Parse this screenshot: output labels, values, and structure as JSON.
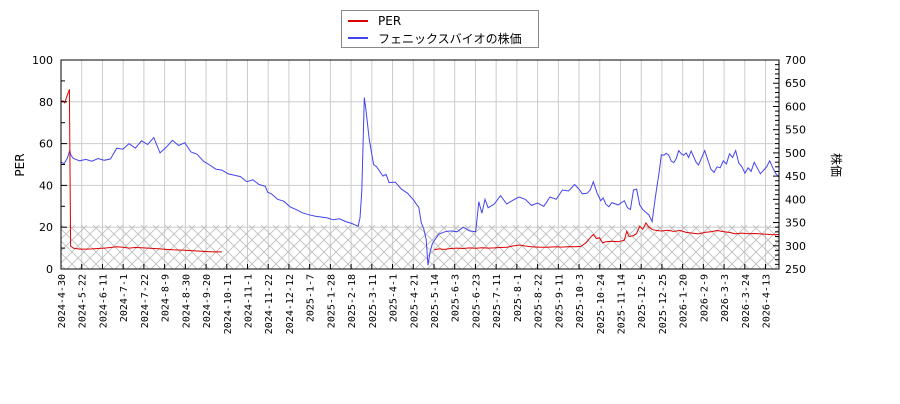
{
  "chart_data": {
    "type": "line",
    "title": "",
    "legend": {
      "position": "top-center",
      "entries": [
        {
          "label": "PER",
          "color": "#dd0000"
        },
        {
          "label": "フェニックスバイオの株価",
          "color": "#4444ee"
        }
      ]
    },
    "ylabel": "PER",
    "y2label": "株価",
    "ylim": [
      0,
      100
    ],
    "y2lim": [
      250,
      700
    ],
    "yticks": [
      0,
      20,
      40,
      60,
      80,
      100
    ],
    "y2ticks": [
      250,
      300,
      350,
      400,
      450,
      500,
      550,
      600,
      650,
      700
    ],
    "grid": true,
    "hatch_band_per": [
      0,
      21
    ],
    "x_tick_labels": [
      "2024-4-30",
      "2024-5-22",
      "2024-6-11",
      "2024-7-1",
      "2024-7-22",
      "2024-8-9",
      "2024-8-30",
      "2024-9-20",
      "2024-10-11",
      "2024-11-1",
      "2024-11-22",
      "2024-12-12",
      "2025-1-7",
      "2025-1-28",
      "2025-2-18",
      "2025-3-11",
      "2025-4-1",
      "2025-4-21",
      "2025-5-14",
      "2025-6-3",
      "2025-6-23",
      "2025-7-11",
      "2025-8-1",
      "2025-8-22",
      "2025-9-11",
      "2025-10-3",
      "2025-10-24",
      "2025-11-14",
      "2025-12-5",
      "2025-12-25",
      "2026-1-20",
      "2026-2-9",
      "2026-3-3",
      "2026-3-24",
      "2026-4-13"
    ],
    "series": [
      {
        "name": "PER",
        "axis": "left",
        "color": "#dd0000",
        "segments": [
          [
            [
              0,
              80
            ],
            [
              0.3,
              80.5
            ],
            [
              0.6,
              79.5
            ],
            [
              1.0,
              83
            ],
            [
              1.35,
              86
            ],
            [
              1.45,
              48
            ],
            [
              1.55,
              11
            ],
            [
              2,
              10
            ],
            [
              3,
              9.5
            ],
            [
              4,
              9.5
            ],
            [
              5,
              9.6
            ],
            [
              6,
              9.8
            ],
            [
              7,
              10
            ],
            [
              8,
              10.3
            ],
            [
              9,
              10.6
            ],
            [
              10,
              10.4
            ],
            [
              11,
              10
            ],
            [
              12,
              10.3
            ],
            [
              13,
              10.2
            ],
            [
              14,
              10
            ],
            [
              15,
              9.8
            ],
            [
              16,
              9.6
            ],
            [
              17,
              9.4
            ],
            [
              18,
              9.2
            ],
            [
              19,
              9.1
            ],
            [
              20,
              9.0
            ],
            [
              21,
              8.8
            ],
            [
              22,
              8.6
            ],
            [
              23,
              8.4
            ],
            [
              24,
              8.3
            ],
            [
              25,
              8.2
            ],
            [
              26,
              8.2
            ]
          ]
        ]
      },
      {
        "name": "PER",
        "axis": "left",
        "color": "#dd0000",
        "segments": [
          [
            [
              60.3,
              9.2
            ],
            [
              61,
              9.6
            ],
            [
              62,
              9.4
            ],
            [
              63,
              9.8
            ],
            [
              64,
              10
            ],
            [
              65,
              9.8
            ],
            [
              66,
              10.1
            ],
            [
              67,
              9.9
            ],
            [
              68,
              10.2
            ],
            [
              69,
              10.0
            ],
            [
              70,
              10.1
            ],
            [
              71,
              10.3
            ],
            [
              72,
              10.4
            ],
            [
              73,
              11.0
            ],
            [
              74,
              11.5
            ],
            [
              75,
              11.0
            ],
            [
              76,
              10.6
            ],
            [
              77,
              10.5
            ],
            [
              78,
              10.4
            ],
            [
              79,
              10.5
            ],
            [
              80,
              10.6
            ],
            [
              81,
              10.5
            ],
            [
              82,
              10.7
            ],
            [
              83,
              10.6
            ],
            [
              84,
              10.8
            ],
            [
              84.8,
              12.5
            ],
            [
              85.5,
              15
            ],
            [
              86,
              16.5
            ],
            [
              86.5,
              14.5
            ],
            [
              87,
              15
            ],
            [
              87.5,
              12.5
            ],
            [
              88,
              13.0
            ],
            [
              89,
              13.3
            ],
            [
              90,
              13.0
            ],
            [
              91,
              13.8
            ],
            [
              91.4,
              18
            ],
            [
              91.8,
              15.5
            ],
            [
              92.5,
              16
            ],
            [
              93,
              17
            ],
            [
              93.5,
              20.5
            ],
            [
              94,
              19
            ],
            [
              94.5,
              22
            ],
            [
              95,
              20
            ],
            [
              95.5,
              19
            ],
            [
              96,
              18.5
            ],
            [
              97,
              18.2
            ],
            [
              98,
              18.5
            ],
            [
              99,
              18.0
            ],
            [
              100,
              18.4
            ],
            [
              101,
              17.5
            ],
            [
              102,
              17.2
            ],
            [
              103,
              16.8
            ],
            [
              104,
              17.5
            ],
            [
              105,
              17.8
            ],
            [
              106,
              18.4
            ],
            [
              107,
              17.9
            ],
            [
              108,
              17.5
            ],
            [
              109,
              16.8
            ],
            [
              110,
              17.2
            ],
            [
              111,
              16.9
            ],
            [
              112,
              17.0
            ],
            [
              113,
              16.8
            ],
            [
              114,
              16.6
            ],
            [
              115,
              16.4
            ],
            [
              116,
              16.5
            ]
          ]
        ]
      },
      {
        "name": "フェニックスバイオの株価",
        "axis": "right",
        "color": "#4444ee",
        "segments": [
          [
            [
              0,
              480
            ],
            [
              0.5,
              477
            ],
            [
              1,
              488
            ],
            [
              1.4,
              505
            ],
            [
              1.6,
              495
            ],
            [
              2,
              488
            ],
            [
              3,
              483
            ],
            [
              4,
              486
            ],
            [
              5,
              482
            ],
            [
              6,
              488
            ],
            [
              7,
              484
            ],
            [
              8,
              487
            ],
            [
              9,
              510
            ],
            [
              10,
              508
            ],
            [
              11,
              520
            ],
            [
              12,
              510
            ],
            [
              13,
              526
            ],
            [
              14,
              518
            ],
            [
              15,
              533
            ],
            [
              16,
              500
            ],
            [
              17,
              512
            ],
            [
              18,
              527
            ],
            [
              19,
              516
            ],
            [
              20,
              522
            ],
            [
              21,
              502
            ],
            [
              22,
              497
            ],
            [
              23,
              482
            ],
            [
              24,
              474
            ],
            [
              25,
              465
            ],
            [
              26,
              463
            ],
            [
              27,
              455
            ],
            [
              28,
              452
            ],
            [
              29,
              449
            ],
            [
              30,
              438
            ],
            [
              31,
              442
            ],
            [
              32,
              432
            ],
            [
              33,
              428
            ],
            [
              33.4,
              415
            ],
            [
              34,
              412
            ],
            [
              35,
              400
            ],
            [
              36,
              396
            ],
            [
              37,
              384
            ],
            [
              38,
              378
            ],
            [
              39,
              371
            ],
            [
              40,
              367
            ],
            [
              41,
              364
            ],
            [
              42,
              362
            ],
            [
              43,
              360
            ],
            [
              44,
              356
            ],
            [
              45,
              358
            ],
            [
              46,
              352
            ],
            [
              47,
              348
            ],
            [
              48,
              342
            ],
            [
              48.3,
              360
            ],
            [
              48.6,
              418
            ],
            [
              49,
              619
            ],
            [
              49.3,
              590
            ],
            [
              49.8,
              530
            ],
            [
              50.5,
              475
            ],
            [
              51,
              470
            ],
            [
              52,
              450
            ],
            [
              52.5,
              454
            ],
            [
              53,
              436
            ],
            [
              54,
              437
            ],
            [
              55,
              422
            ],
            [
              56,
              413
            ],
            [
              57,
              398
            ],
            [
              57.5,
              388
            ],
            [
              57.8,
              383
            ],
            [
              58.2,
              350
            ],
            [
              58.6,
              337
            ],
            [
              59,
              313
            ],
            [
              59.3,
              258
            ],
            [
              59.6,
              285
            ],
            [
              60,
              305
            ],
            [
              61,
              325
            ],
            [
              62,
              330
            ],
            [
              63,
              332
            ],
            [
              64,
              330
            ],
            [
              65,
              340
            ],
            [
              66,
              332
            ],
            [
              67,
              330
            ],
            [
              67.5,
              395
            ],
            [
              68,
              370
            ],
            [
              68.5,
              400
            ],
            [
              69,
              382
            ],
            [
              70,
              390
            ],
            [
              71,
              408
            ],
            [
              72,
              390
            ],
            [
              73,
              398
            ],
            [
              74,
              405
            ],
            [
              75,
              400
            ],
            [
              76,
              387
            ],
            [
              77,
              392
            ],
            [
              78,
              385
            ],
            [
              79,
              405
            ],
            [
              80,
              400
            ],
            [
              81,
              420
            ],
            [
              82,
              418
            ],
            [
              83,
              432
            ],
            [
              83.8,
              420
            ],
            [
              84.2,
              412
            ],
            [
              85,
              413
            ],
            [
              85.5,
              420
            ],
            [
              86,
              438
            ],
            [
              86.6,
              414
            ],
            [
              87.2,
              397
            ],
            [
              87.6,
              403
            ],
            [
              88,
              390
            ],
            [
              88.5,
              384
            ],
            [
              89,
              393
            ],
            [
              90,
              388
            ],
            [
              91,
              397
            ],
            [
              91.5,
              382
            ],
            [
              92,
              378
            ],
            [
              92.5,
              420
            ],
            [
              93,
              422
            ],
            [
              93.5,
              388
            ],
            [
              94,
              378
            ],
            [
              95,
              366
            ],
            [
              95.5,
              352
            ],
            [
              96,
              402
            ],
            [
              96.3,
              430
            ],
            [
              96.6,
              455
            ],
            [
              97,
              496
            ],
            [
              97.4,
              495
            ],
            [
              97.8,
              499
            ],
            [
              98.2,
              495
            ],
            [
              98.6,
              482
            ],
            [
              99,
              479
            ],
            [
              99.4,
              488
            ],
            [
              99.8,
              505
            ],
            [
              100.2,
              498
            ],
            [
              100.6,
              495
            ],
            [
              101,
              500
            ],
            [
              101.4,
              490
            ],
            [
              101.8,
              504
            ],
            [
              102.2,
              492
            ],
            [
              102.6,
              480
            ],
            [
              103,
              474
            ],
            [
              104,
              505
            ],
            [
              105,
              465
            ],
            [
              105.5,
              458
            ],
            [
              106,
              470
            ],
            [
              106.5,
              468
            ],
            [
              107,
              483
            ],
            [
              107.5,
              476
            ],
            [
              108,
              498
            ],
            [
              108.5,
              490
            ],
            [
              109,
              505
            ],
            [
              109.5,
              478
            ],
            [
              110,
              470
            ],
            [
              110.5,
              456
            ],
            [
              111,
              468
            ],
            [
              111.5,
              460
            ],
            [
              112,
              480
            ],
            [
              113,
              455
            ],
            [
              114,
              470
            ],
            [
              114.5,
              483
            ],
            [
              115,
              468
            ],
            [
              115.5,
              455
            ],
            [
              116,
              448
            ]
          ]
        ]
      }
    ],
    "notes": "x values are approximate pixel-column indices in units of ~6.2px (0 = 2024-4-30, 116 = right edge ≈ 2026-4-17); values read visually from gridlines."
  }
}
